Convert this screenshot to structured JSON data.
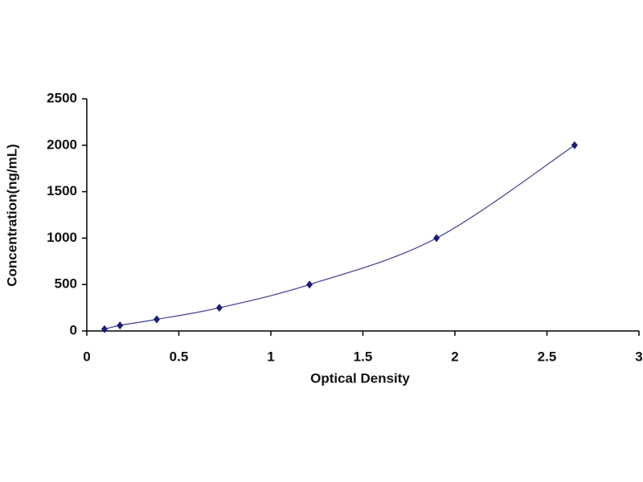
{
  "chart_data": {
    "type": "scatter",
    "x_label": "Optical Density",
    "y_label": "Concentration(ng/mL)",
    "x": [
      0.096,
      0.18,
      0.38,
      0.72,
      1.21,
      1.9,
      2.65
    ],
    "values": [
      20,
      60,
      125,
      250,
      500,
      1000,
      2000
    ],
    "color": "#1c1c78",
    "trendline": true,
    "trendline_color": "#4b4b9c",
    "xlim": [
      0,
      3
    ],
    "xticks": [
      0,
      0.5,
      1,
      1.5,
      2,
      2.5,
      3
    ],
    "ylim": [
      0,
      2500
    ],
    "yticks": [
      0,
      500,
      1000,
      1500,
      2000,
      2500
    ],
    "grid": false
  }
}
